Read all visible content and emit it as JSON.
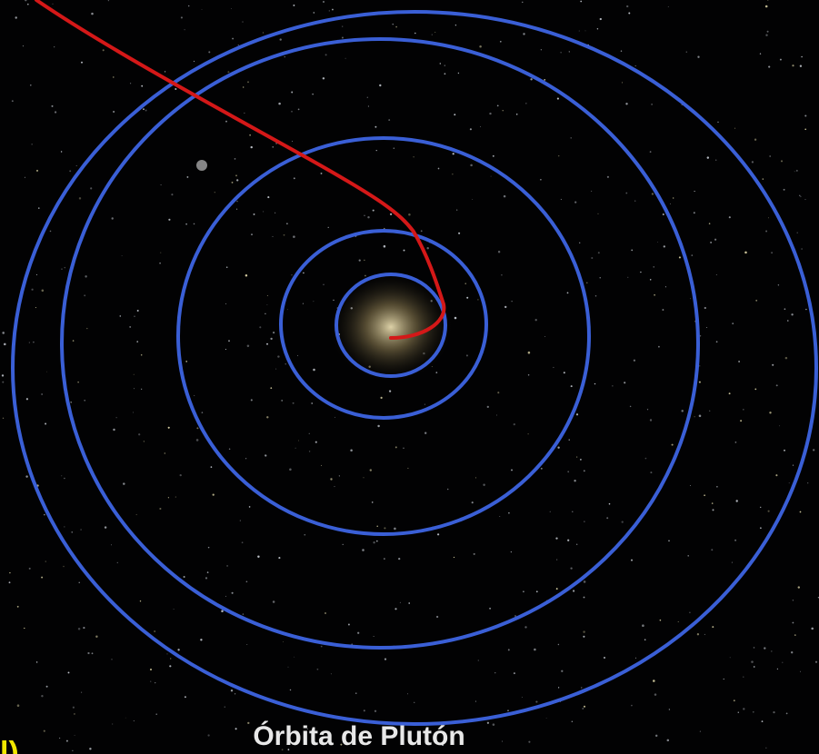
{
  "caption": "Órbita de Plutón",
  "corner_label": "l)"
}
